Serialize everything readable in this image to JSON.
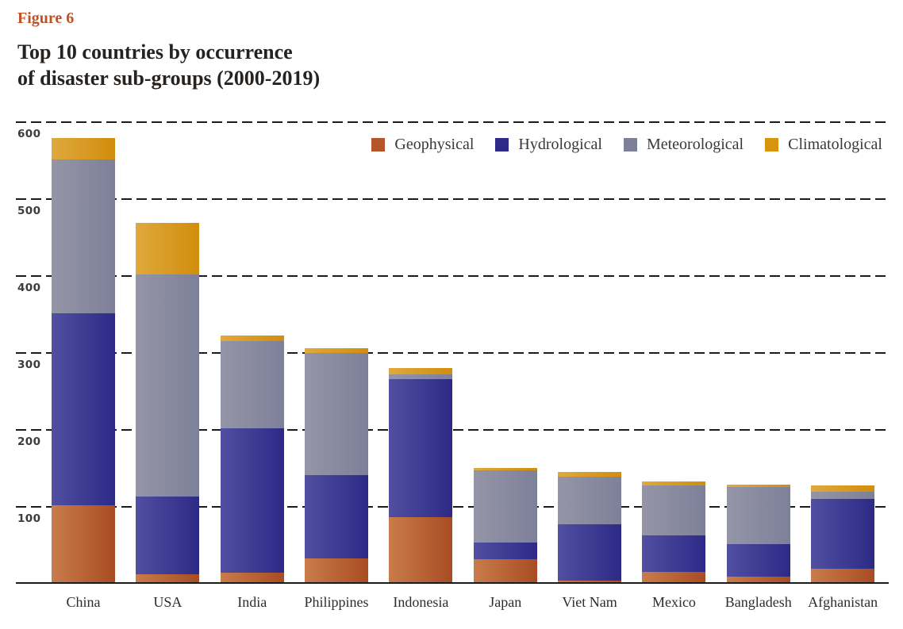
{
  "figure_label": "Figure 6",
  "title_line1": "Top 10 countries by occurrence",
  "title_line2": "of disaster sub-groups (2000-2019)",
  "colors": {
    "figure_label_accent": "#bf5227",
    "title_text": "#262220",
    "gridline": "#1b1b1b",
    "axis_tick_text": "#3c3c3a",
    "category_text": "#2f2d2b"
  },
  "chart_data": {
    "type": "bar",
    "stacked": true,
    "title": "Top 10 countries by occurrence of disaster sub-groups (2000-2019)",
    "xlabel": "",
    "ylabel": "",
    "ylim": [
      0,
      600
    ],
    "yticks": [
      100,
      200,
      300,
      400,
      500,
      600
    ],
    "grid": "dashed-horizontal",
    "legend_position": "top-right",
    "legend_order": [
      "Geophysical",
      "Hydrological",
      "Meteorological",
      "Climatological"
    ],
    "categories": [
      "China",
      "USA",
      "India",
      "Philippines",
      "Indonesia",
      "Japan",
      "Viet Nam",
      "Mexico",
      "Bangladesh",
      "Afghanistan"
    ],
    "series": [
      {
        "name": "Geophysical",
        "legend_color": "#b4552c",
        "gradient": [
          "#c97c4b",
          "#a84c23"
        ],
        "values": [
          100,
          10,
          12,
          31,
          85,
          30,
          2,
          13,
          7,
          18
        ]
      },
      {
        "name": "Hydrological",
        "legend_color": "#2e2b88",
        "gradient": [
          "#514fa0",
          "#2c2a86"
        ],
        "values": [
          249,
          101,
          188,
          108,
          179,
          22,
          73,
          48,
          42,
          90
        ]
      },
      {
        "name": "Meteorological",
        "legend_color": "#7c8099",
        "gradient": [
          "#9595a7",
          "#7d8099"
        ],
        "values": [
          200,
          289,
          113,
          159,
          6,
          93,
          62,
          65,
          75,
          10
        ]
      },
      {
        "name": "Climatological",
        "legend_color": "#d8940f",
        "gradient": [
          "#dfa93e",
          "#d18d0b"
        ],
        "values": [
          28,
          67,
          8,
          6,
          8,
          3,
          6,
          5,
          3,
          8
        ]
      }
    ],
    "totals": [
      577,
      467,
      321,
      304,
      278,
      148,
      143,
      131,
      127,
      126
    ]
  }
}
